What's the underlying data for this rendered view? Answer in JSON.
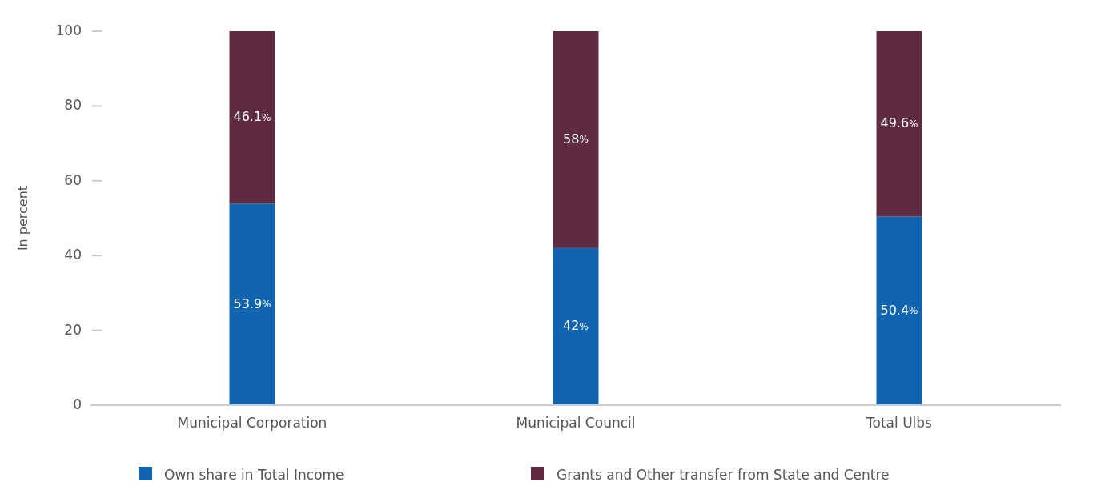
{
  "chart_data": {
    "type": "bar",
    "stacked": true,
    "ylabel": "In percent",
    "categories": [
      "Municipal Corporation",
      "Municipal Council",
      "Total Ulbs"
    ],
    "series": [
      {
        "name": "Own share in Total Income",
        "color": "#1064b0",
        "values": [
          53.9,
          42,
          50.4
        ],
        "value_labels": [
          "53.9%",
          "42%",
          "50.4%"
        ]
      },
      {
        "name": "Grants and Other transfer from State and Centre",
        "color": "#5e2b42",
        "values": [
          46.1,
          58,
          49.6
        ],
        "value_labels": [
          "46.1%",
          "58%",
          "49.6%"
        ]
      }
    ],
    "ylim": [
      0,
      100
    ],
    "yticks": [
      0,
      20,
      40,
      60,
      80,
      100
    ],
    "grid": false,
    "legend": "bottom"
  }
}
